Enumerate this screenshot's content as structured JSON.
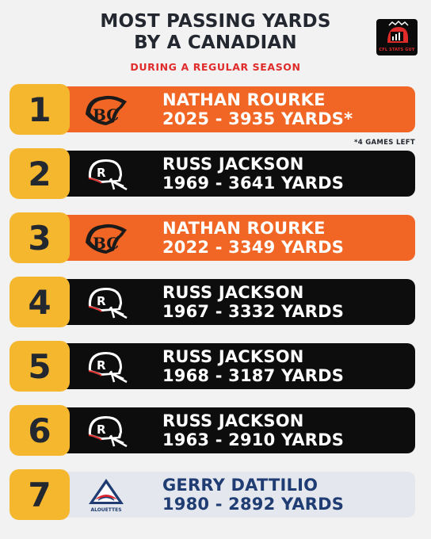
{
  "header": {
    "title_line1": "MOST PASSING YARDS",
    "title_line2": "BY A CANADIAN",
    "subtitle": "DURING A REGULAR SEASON",
    "badge_text": "CFL STATS GUY"
  },
  "colors": {
    "rank_bg": "#f5b72e",
    "bc_orange": "#f16624",
    "black": "#0d0d0d",
    "alouettes_bg": "#e4e7ee",
    "alouettes_text": "#1f3d73",
    "subtitle_red": "#e02b2b"
  },
  "rows": [
    {
      "rank": "1",
      "name": "NATHAN ROURKE",
      "detail": "2025 - 3935 YARDS*",
      "logo": "bc-lions-logo-icon"
    },
    {
      "rank": "2",
      "name": "RUSS JACKSON",
      "detail": "1969 - 3641 YARDS",
      "logo": "ottawa-rough-riders-helmet-icon"
    },
    {
      "rank": "3",
      "name": "NATHAN ROURKE",
      "detail": "2022 - 3349 YARDS",
      "logo": "bc-lions-logo-icon"
    },
    {
      "rank": "4",
      "name": "RUSS JACKSON",
      "detail": "1967 - 3332 YARDS",
      "logo": "ottawa-rough-riders-helmet-icon"
    },
    {
      "rank": "5",
      "name": "RUSS JACKSON",
      "detail": "1968 - 3187 YARDS",
      "logo": "ottawa-rough-riders-helmet-icon"
    },
    {
      "rank": "6",
      "name": "RUSS JACKSON",
      "detail": "1963 - 2910 YARDS",
      "logo": "ottawa-rough-riders-helmet-icon"
    },
    {
      "rank": "7",
      "name": "GERRY DATTILIO",
      "detail": "1980 - 2892 YARDS",
      "logo": "montreal-alouettes-logo-icon",
      "logo_text": "ALOUETTES"
    }
  ],
  "footnote": "*4 GAMES LEFT"
}
